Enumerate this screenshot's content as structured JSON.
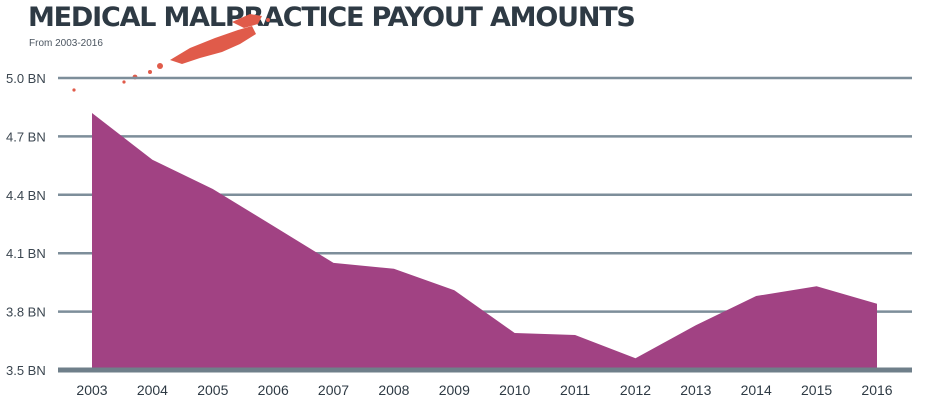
{
  "chart_data": {
    "type": "area",
    "title": "MEDICAL MALPRACTICE PAYOUT AMOUNTS",
    "subtitle": "From 2003-2016",
    "x": [
      "2003",
      "2004",
      "2005",
      "2006",
      "2007",
      "2008",
      "2009",
      "2010",
      "2011",
      "2012",
      "2013",
      "2014",
      "2015",
      "2016"
    ],
    "values": [
      4.82,
      4.58,
      4.43,
      4.24,
      4.05,
      4.02,
      3.91,
      3.69,
      3.68,
      3.56,
      3.73,
      3.88,
      3.93,
      3.84
    ],
    "y_ticks": [
      {
        "value": 5.0,
        "label": "5.0 BN"
      },
      {
        "value": 4.7,
        "label": "4.7 BN"
      },
      {
        "value": 4.4,
        "label": "4.4 BN"
      },
      {
        "value": 4.1,
        "label": "4.1 BN"
      },
      {
        "value": 3.8,
        "label": "3.8 BN"
      },
      {
        "value": 3.5,
        "label": "3.5 BN"
      }
    ],
    "ylim": [
      3.5,
      5.0
    ],
    "grid": true,
    "colors": {
      "area": "#a14283",
      "grid": "#7d8e9a",
      "baseline": "#6f7f8a",
      "splatter": "#e05b4a"
    }
  }
}
